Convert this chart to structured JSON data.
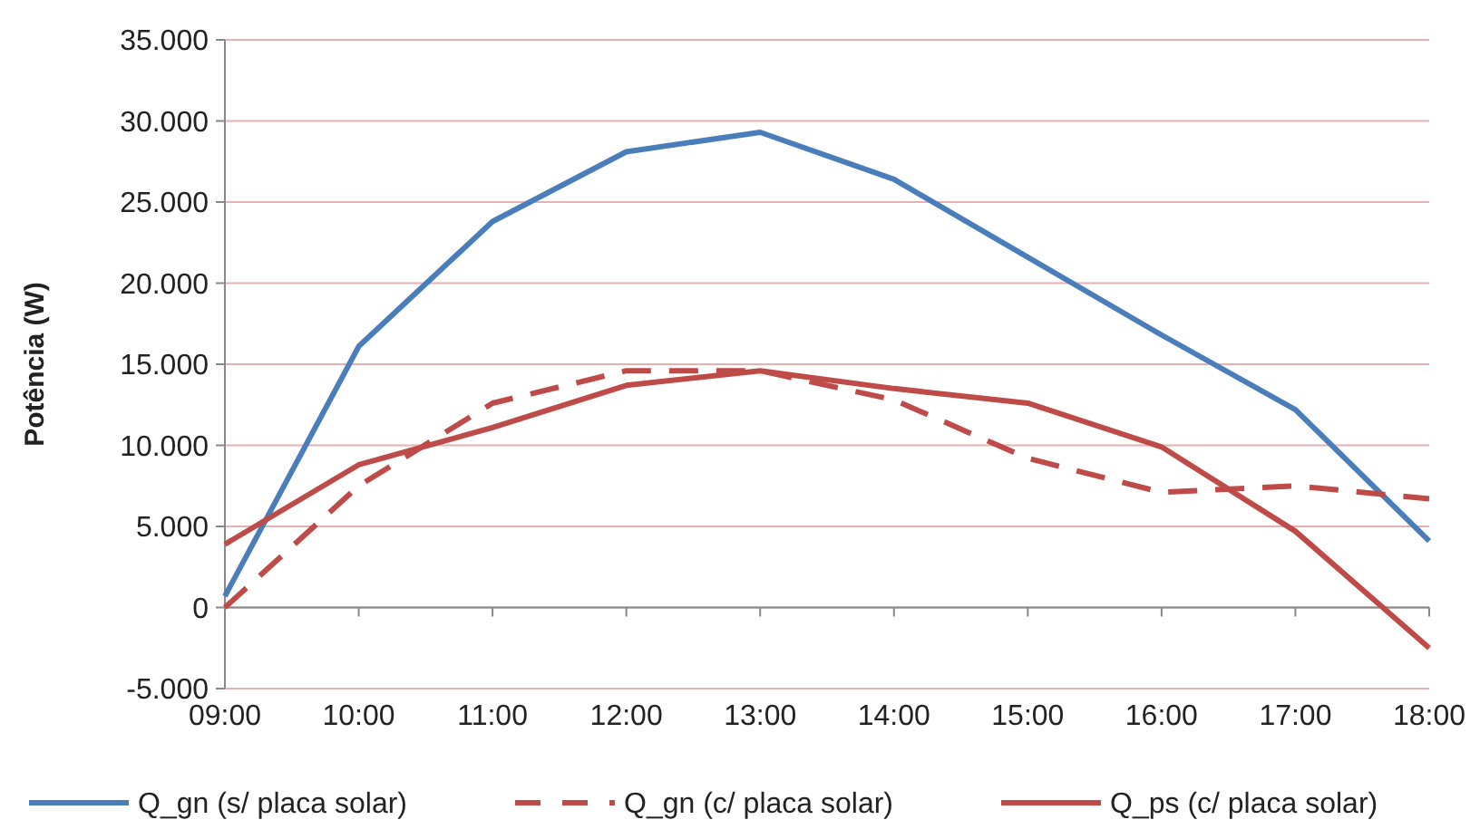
{
  "chart_data": {
    "type": "line",
    "ylabel": "Potência (W)",
    "categories": [
      "09:00",
      "10:00",
      "11:00",
      "12:00",
      "13:00",
      "14:00",
      "15:00",
      "16:00",
      "17:00",
      "18:00"
    ],
    "ylim": [
      -5000,
      35000
    ],
    "yticks": [
      {
        "value": -5000,
        "label": "-5.000"
      },
      0,
      {
        "value": 5000,
        "label": "5.000"
      },
      {
        "value": 10000,
        "label": "10.000"
      },
      {
        "value": 15000,
        "label": "15.000"
      },
      {
        "value": 20000,
        "label": "20.000"
      },
      {
        "value": 25000,
        "label": "25.000"
      },
      {
        "value": 30000,
        "label": "30.000"
      },
      {
        "value": 35000,
        "label": "35.000"
      }
    ],
    "grid": "y",
    "legend": "bottom",
    "marker": "none",
    "series": [
      {
        "name": "Q_gn (s/ placa solar)",
        "color": "#4a7ebb",
        "line_style": "solid",
        "values": [
          700,
          16100,
          23800,
          28100,
          29300,
          26400,
          21600,
          16800,
          12200,
          4100
        ]
      },
      {
        "name": "Q_gn (c/ placa solar)",
        "color": "#be4b48",
        "line_style": "dashed",
        "values": [
          0,
          7500,
          12600,
          14600,
          14600,
          12800,
          9200,
          7100,
          7500,
          6700
        ]
      },
      {
        "name": "Q_ps (c/ placa solar)",
        "color": "#be4b48",
        "line_style": "solid",
        "values": [
          3900,
          8800,
          11100,
          13700,
          14600,
          13500,
          12600,
          9900,
          4700,
          -2500
        ]
      }
    ]
  }
}
